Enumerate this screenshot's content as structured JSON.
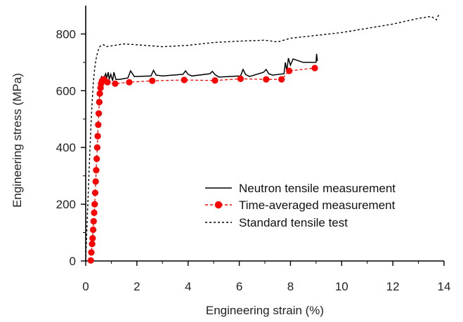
{
  "chart_data": {
    "type": "line",
    "title": "",
    "xlabel": "Engineering strain (%)",
    "ylabel": "Engineering stress (MPa)",
    "xlim": [
      0,
      14
    ],
    "ylim": [
      0,
      900
    ],
    "xticks": [
      0,
      2,
      4,
      6,
      8,
      10,
      12,
      14
    ],
    "yticks": [
      0,
      200,
      400,
      600,
      800
    ],
    "grid": false,
    "legend_position": "lower-right",
    "series": [
      {
        "name": "Neutron tensile measurement",
        "style": "solid",
        "color": "#000000",
        "x": [
          0.55,
          0.62,
          0.7,
          0.78,
          0.82,
          0.88,
          0.92,
          0.98,
          1.05,
          1.1,
          1.18,
          1.3,
          1.65,
          1.75,
          1.9,
          2.55,
          2.65,
          2.75,
          3.0,
          3.8,
          3.9,
          4.0,
          4.15,
          4.85,
          4.95,
          5.05,
          5.2,
          6.05,
          6.15,
          6.25,
          6.4,
          6.95,
          7.05,
          7.15,
          7.3,
          7.75,
          7.8,
          7.86,
          7.92,
          8.0,
          8.1,
          8.5,
          9.0,
          9.02,
          9.05
        ],
        "y": [
          630,
          650,
          642,
          660,
          645,
          665,
          640,
          658,
          635,
          665,
          640,
          640,
          645,
          670,
          650,
          652,
          672,
          655,
          652,
          658,
          670,
          658,
          652,
          660,
          668,
          657,
          648,
          652,
          675,
          657,
          650,
          665,
          675,
          660,
          655,
          660,
          700,
          670,
          715,
          690,
          712,
          700,
          700,
          730,
          705
        ]
      },
      {
        "name": "Time-averaged measurement",
        "style": "dashed-with-markers",
        "color": "#ff0000",
        "x": [
          0.2,
          0.22,
          0.25,
          0.27,
          0.29,
          0.31,
          0.33,
          0.35,
          0.37,
          0.39,
          0.41,
          0.43,
          0.45,
          0.47,
          0.49,
          0.51,
          0.53,
          0.55,
          0.58,
          0.6,
          0.64,
          0.7,
          0.85,
          1.15,
          1.7,
          2.6,
          3.85,
          5.05,
          6.05,
          7.05,
          7.65,
          7.95,
          8.95
        ],
        "y": [
          2,
          30,
          60,
          80,
          110,
          140,
          170,
          200,
          240,
          280,
          320,
          360,
          400,
          440,
          480,
          520,
          560,
          590,
          610,
          625,
          635,
          640,
          630,
          625,
          630,
          635,
          638,
          636,
          642,
          640,
          640,
          670,
          680
        ]
      },
      {
        "name": "Standard tensile test",
        "style": "dotted",
        "color": "#000000",
        "x": [
          0.0,
          0.05,
          0.1,
          0.15,
          0.2,
          0.25,
          0.3,
          0.35,
          0.4,
          0.45,
          0.5,
          0.55,
          0.6,
          0.7,
          0.8,
          1.0,
          1.5,
          2.0,
          3.0,
          4.0,
          5.0,
          6.0,
          7.0,
          7.5,
          8.0,
          9.0,
          10.0,
          11.0,
          12.0,
          13.0,
          13.5,
          13.7,
          13.8
        ],
        "y": [
          0,
          120,
          240,
          360,
          470,
          560,
          630,
          680,
          710,
          730,
          745,
          755,
          760,
          762,
          755,
          758,
          765,
          762,
          755,
          760,
          770,
          775,
          778,
          772,
          785,
          795,
          805,
          820,
          835,
          855,
          862,
          850,
          868
        ]
      }
    ]
  }
}
